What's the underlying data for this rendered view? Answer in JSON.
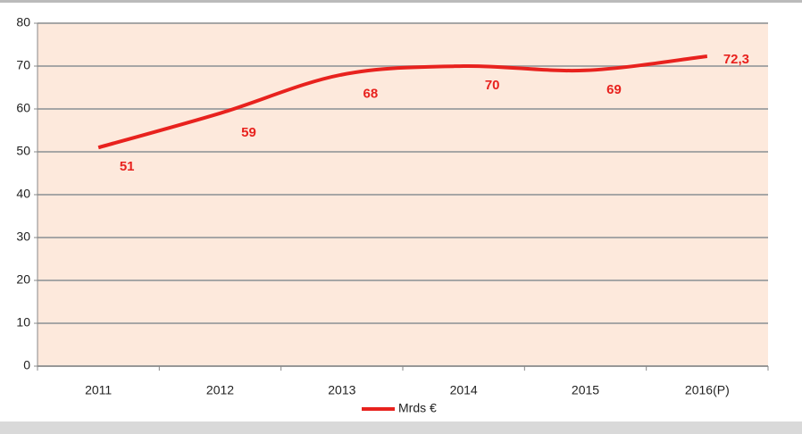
{
  "chart_data": {
    "type": "line",
    "categories": [
      "2011",
      "2012",
      "2013",
      "2014",
      "2015",
      "2016(P)"
    ],
    "series": [
      {
        "name": "Mrds €",
        "color": "#e8221e",
        "values": [
          51,
          59,
          68,
          70,
          69,
          72.3
        ],
        "value_labels": [
          "51",
          "59",
          "68",
          "70",
          "69",
          "72,3"
        ]
      }
    ],
    "ylim": [
      0,
      80
    ],
    "yticks": [
      0,
      10,
      20,
      30,
      40,
      50,
      60,
      70,
      80
    ],
    "grid": true,
    "legend": "bottom"
  }
}
